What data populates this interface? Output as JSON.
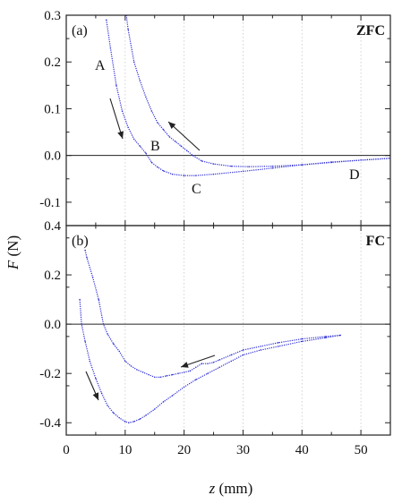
{
  "chart_data": [
    {
      "type": "line",
      "panel_label": "(a)",
      "tag": "ZFC",
      "xlim": [
        0,
        55
      ],
      "ylim": [
        -0.15,
        0.3
      ],
      "yticks": [
        "0.3",
        "0.2",
        "0.1",
        "0.0",
        "-0.1"
      ],
      "ytick_values": [
        0.3,
        0.2,
        0.1,
        0.0,
        -0.1
      ],
      "grid_x": true,
      "series": [
        {
          "name": "",
          "x": [
            6.8,
            7.5,
            8.5,
            9.5,
            10.5,
            11.5,
            12.5,
            13.5,
            14.5,
            15.5,
            16.5,
            18,
            20,
            22,
            25,
            30,
            35,
            40,
            45,
            50,
            55
          ],
          "y": [
            0.29,
            0.23,
            0.15,
            0.095,
            0.06,
            0.035,
            0.02,
            0.005,
            -0.015,
            -0.025,
            -0.033,
            -0.04,
            -0.043,
            -0.043,
            -0.04,
            -0.034,
            -0.027,
            -0.02,
            -0.014,
            -0.01,
            -0.006
          ]
        },
        {
          "name": "",
          "x": [
            10.2,
            10.5,
            11.5,
            12.5,
            13.5,
            14.5,
            15.5,
            16.5,
            17.5,
            18.5,
            19.5,
            20.5,
            21.5,
            23,
            25,
            28,
            31,
            35,
            40,
            45,
            50,
            55
          ],
          "y": [
            0.3,
            0.27,
            0.2,
            0.16,
            0.125,
            0.095,
            0.07,
            0.055,
            0.04,
            0.03,
            0.02,
            0.01,
            0.0,
            -0.012,
            -0.018,
            -0.023,
            -0.024,
            -0.023,
            -0.02,
            -0.015,
            -0.01,
            -0.006
          ]
        }
      ],
      "annotations": [
        "A",
        "B",
        "C",
        "D"
      ]
    },
    {
      "type": "line",
      "panel_label": "(b)",
      "tag": "FC",
      "xlim": [
        0,
        55
      ],
      "ylim": [
        -0.45,
        0.4
      ],
      "yticks": [
        "0.4",
        "0.2",
        "0.0",
        "-0.2",
        "-0.4"
      ],
      "ytick_values": [
        0.4,
        0.2,
        0.0,
        -0.2,
        -0.4
      ],
      "xticks": [
        "0",
        "10",
        "20",
        "30",
        "40",
        "50"
      ],
      "xtick_values": [
        0,
        10,
        20,
        30,
        40,
        50
      ],
      "grid_x": true,
      "series": [
        {
          "name": "",
          "x": [
            3.2,
            3.5,
            4.5,
            5.5,
            6.3,
            7,
            8,
            9,
            10,
            11,
            12,
            13,
            14,
            15,
            16,
            17,
            18,
            19,
            20,
            21,
            22,
            23,
            24,
            25,
            26,
            28,
            30,
            33,
            36,
            40,
            44,
            46.5
          ],
          "y": [
            0.3,
            0.27,
            0.19,
            0.1,
            0.0,
            -0.04,
            -0.08,
            -0.11,
            -0.15,
            -0.17,
            -0.185,
            -0.195,
            -0.205,
            -0.215,
            -0.215,
            -0.21,
            -0.205,
            -0.2,
            -0.195,
            -0.19,
            -0.175,
            -0.16,
            -0.16,
            -0.155,
            -0.145,
            -0.125,
            -0.105,
            -0.09,
            -0.075,
            -0.06,
            -0.05,
            -0.045
          ]
        },
        {
          "name": "",
          "x": [
            2.3,
            2.6,
            3.2,
            4,
            5,
            6,
            7,
            8,
            9,
            10,
            10.6,
            11.5,
            12.5,
            13.5,
            15,
            16.5,
            18,
            20,
            22,
            24,
            26,
            28,
            30,
            33,
            36,
            40,
            44,
            46.5
          ],
          "y": [
            0.1,
            0.0,
            -0.07,
            -0.15,
            -0.22,
            -0.28,
            -0.33,
            -0.36,
            -0.38,
            -0.395,
            -0.4,
            -0.395,
            -0.385,
            -0.37,
            -0.345,
            -0.315,
            -0.29,
            -0.255,
            -0.225,
            -0.2,
            -0.175,
            -0.15,
            -0.125,
            -0.105,
            -0.09,
            -0.07,
            -0.055,
            -0.045
          ]
        }
      ],
      "annotations": []
    }
  ],
  "shared": {
    "ylabel_italic": "F",
    "ylabel_unit": " (N)",
    "xlabel_italic": "z",
    "xlabel_unit": " (mm)"
  },
  "colors": {
    "curve": "#2b2bd6",
    "axis": "#222222"
  }
}
